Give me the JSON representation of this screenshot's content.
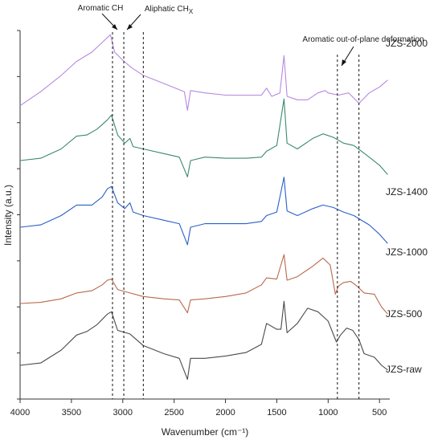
{
  "chart_data": {
    "type": "line",
    "title": "",
    "xlabel": "Wavenumber (cm⁻¹)",
    "ylabel": "Intensity (a.u.)",
    "xlim": [
      4000,
      400
    ],
    "x_reversed": true,
    "x_ticks": [
      4000,
      3500,
      3000,
      2500,
      2000,
      1500,
      1000,
      500
    ],
    "y_tick_labels_shown": false,
    "grid": false,
    "legend": "inline labels at right end of each curve",
    "annotations": [
      {
        "text": "Aromatic CH",
        "lines": [
          3100
        ]
      },
      {
        "text": "Aliphatic CH",
        "subscript": "X",
        "lines": [
          2990,
          2800
        ]
      },
      {
        "text": "Aromatic out-of-plane deformation",
        "lines": [
          910,
          700
        ]
      }
    ],
    "series": [
      {
        "name": "JZS-2000",
        "color": "#b689e0",
        "points": [
          [
            4000,
            -0.8
          ],
          [
            3800,
            0.4
          ],
          [
            3600,
            1.8
          ],
          [
            3450,
            3.0
          ],
          [
            3300,
            3.8
          ],
          [
            3180,
            4.8
          ],
          [
            3120,
            5.3
          ],
          [
            3080,
            3.8
          ],
          [
            3000,
            3.1
          ],
          [
            2920,
            2.5
          ],
          [
            2800,
            1.8
          ],
          [
            2600,
            1.1
          ],
          [
            2400,
            0.4
          ],
          [
            2370,
            -1.2
          ],
          [
            2340,
            0.5
          ],
          [
            2200,
            0.3
          ],
          [
            2000,
            0.1
          ],
          [
            1800,
            0.1
          ],
          [
            1650,
            0.1
          ],
          [
            1600,
            0.7
          ],
          [
            1550,
            0.0
          ],
          [
            1470,
            0.3
          ],
          [
            1430,
            3.5
          ],
          [
            1400,
            0.0
          ],
          [
            1300,
            -0.3
          ],
          [
            1200,
            -0.3
          ],
          [
            1100,
            0.3
          ],
          [
            1030,
            0.5
          ],
          [
            1000,
            0.3
          ],
          [
            900,
            0.1
          ],
          [
            800,
            0.3
          ],
          [
            700,
            -0.6
          ],
          [
            600,
            0.3
          ],
          [
            500,
            0.8
          ],
          [
            420,
            1.4
          ]
        ]
      },
      {
        "name": "JZS-1400",
        "color": "#3a8a6a",
        "points": [
          [
            4000,
            0.0
          ],
          [
            3800,
            0.2
          ],
          [
            3600,
            1.0
          ],
          [
            3450,
            2.1
          ],
          [
            3350,
            2.2
          ],
          [
            3250,
            2.7
          ],
          [
            3150,
            3.5
          ],
          [
            3110,
            3.9
          ],
          [
            3050,
            2.2
          ],
          [
            2980,
            1.5
          ],
          [
            2930,
            1.9
          ],
          [
            2900,
            1.2
          ],
          [
            2800,
            1.0
          ],
          [
            2600,
            0.6
          ],
          [
            2450,
            0.3
          ],
          [
            2370,
            -1.4
          ],
          [
            2340,
            0.0
          ],
          [
            2200,
            0.3
          ],
          [
            2000,
            0.2
          ],
          [
            1800,
            0.2
          ],
          [
            1650,
            0.3
          ],
          [
            1600,
            0.8
          ],
          [
            1500,
            1.3
          ],
          [
            1430,
            5.3
          ],
          [
            1400,
            1.5
          ],
          [
            1300,
            1.0
          ],
          [
            1150,
            1.9
          ],
          [
            1050,
            2.3
          ],
          [
            950,
            2.0
          ],
          [
            850,
            1.5
          ],
          [
            750,
            1.3
          ],
          [
            600,
            0.3
          ],
          [
            500,
            -0.4
          ],
          [
            420,
            -1.2
          ]
        ]
      },
      {
        "name": "JZS-1000",
        "color": "#2a5fc7",
        "points": [
          [
            4000,
            0.0
          ],
          [
            3800,
            0.2
          ],
          [
            3600,
            1.0
          ],
          [
            3450,
            1.9
          ],
          [
            3300,
            1.9
          ],
          [
            3200,
            2.6
          ],
          [
            3150,
            3.3
          ],
          [
            3110,
            3.5
          ],
          [
            3050,
            2.1
          ],
          [
            2980,
            1.6
          ],
          [
            2930,
            2.1
          ],
          [
            2900,
            1.3
          ],
          [
            2800,
            1.0
          ],
          [
            2600,
            0.6
          ],
          [
            2450,
            0.3
          ],
          [
            2370,
            -1.5
          ],
          [
            2340,
            0.0
          ],
          [
            2200,
            0.3
          ],
          [
            2000,
            0.3
          ],
          [
            1800,
            0.3
          ],
          [
            1650,
            0.5
          ],
          [
            1600,
            1.0
          ],
          [
            1500,
            1.3
          ],
          [
            1430,
            4.3
          ],
          [
            1400,
            1.4
          ],
          [
            1300,
            1.0
          ],
          [
            1150,
            1.6
          ],
          [
            1050,
            1.9
          ],
          [
            950,
            1.7
          ],
          [
            850,
            1.3
          ],
          [
            750,
            1.0
          ],
          [
            600,
            0.2
          ],
          [
            500,
            -0.6
          ],
          [
            420,
            -1.4
          ]
        ]
      },
      {
        "name": "JZS-500",
        "color": "#b8694b",
        "points": [
          [
            4000,
            0.0
          ],
          [
            3800,
            0.1
          ],
          [
            3600,
            0.4
          ],
          [
            3450,
            0.9
          ],
          [
            3300,
            1.1
          ],
          [
            3200,
            1.6
          ],
          [
            3150,
            2.0
          ],
          [
            3110,
            2.1
          ],
          [
            3050,
            1.2
          ],
          [
            2930,
            0.9
          ],
          [
            2800,
            0.6
          ],
          [
            2600,
            0.4
          ],
          [
            2450,
            0.3
          ],
          [
            2370,
            -0.8
          ],
          [
            2340,
            0.3
          ],
          [
            2200,
            0.4
          ],
          [
            2000,
            0.6
          ],
          [
            1800,
            0.9
          ],
          [
            1650,
            1.6
          ],
          [
            1600,
            2.2
          ],
          [
            1500,
            2.1
          ],
          [
            1430,
            4.2
          ],
          [
            1400,
            2.0
          ],
          [
            1300,
            2.3
          ],
          [
            1150,
            3.2
          ],
          [
            1050,
            3.9
          ],
          [
            980,
            3.3
          ],
          [
            930,
            0.8
          ],
          [
            900,
            1.5
          ],
          [
            850,
            1.8
          ],
          [
            780,
            1.9
          ],
          [
            720,
            1.5
          ],
          [
            650,
            0.9
          ],
          [
            550,
            0.8
          ],
          [
            480,
            -0.3
          ],
          [
            420,
            -0.9
          ]
        ]
      },
      {
        "name": "JZS-raw",
        "color": "#4a4a4a",
        "points": [
          [
            4000,
            0.0
          ],
          [
            3800,
            0.2
          ],
          [
            3600,
            1.3
          ],
          [
            3450,
            2.6
          ],
          [
            3350,
            2.9
          ],
          [
            3250,
            3.5
          ],
          [
            3150,
            4.4
          ],
          [
            3110,
            4.6
          ],
          [
            3050,
            3.0
          ],
          [
            2930,
            2.7
          ],
          [
            2800,
            1.7
          ],
          [
            2600,
            1.0
          ],
          [
            2450,
            0.6
          ],
          [
            2370,
            -1.2
          ],
          [
            2340,
            0.6
          ],
          [
            2200,
            0.6
          ],
          [
            2000,
            0.8
          ],
          [
            1800,
            1.1
          ],
          [
            1650,
            1.8
          ],
          [
            1600,
            3.6
          ],
          [
            1500,
            3.1
          ],
          [
            1460,
            3.1
          ],
          [
            1430,
            5.5
          ],
          [
            1400,
            2.8
          ],
          [
            1300,
            3.6
          ],
          [
            1200,
            4.9
          ],
          [
            1100,
            4.6
          ],
          [
            1000,
            3.8
          ],
          [
            920,
            2.0
          ],
          [
            880,
            2.6
          ],
          [
            820,
            3.2
          ],
          [
            760,
            3.0
          ],
          [
            700,
            2.2
          ],
          [
            650,
            1.0
          ],
          [
            550,
            0.7
          ],
          [
            480,
            0.0
          ],
          [
            420,
            -0.4
          ]
        ]
      }
    ]
  }
}
